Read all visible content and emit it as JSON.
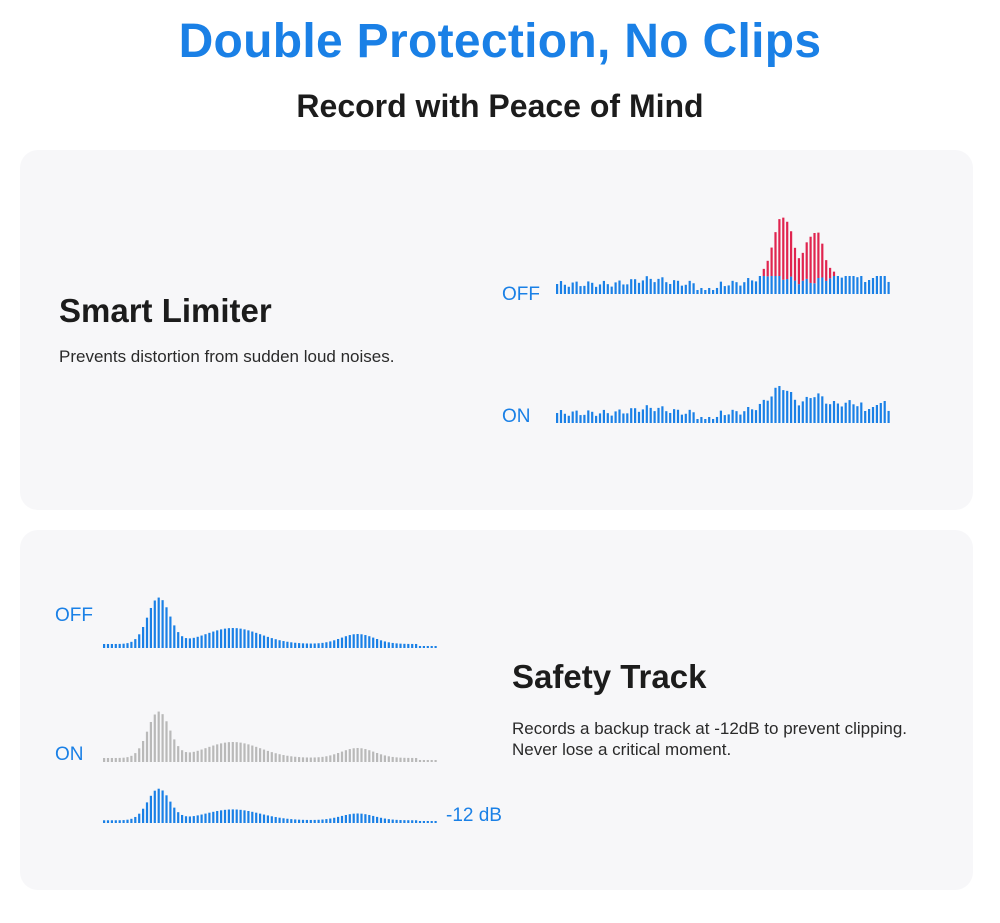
{
  "header": {
    "title": "Double Protection, No Clips",
    "subtitle": "Record with Peace of Mind"
  },
  "colors": {
    "accent": "#1a80e6",
    "clip": "#e0244f",
    "muted": "#b9b9b9",
    "card": "#f7f7f9"
  },
  "smart_limiter": {
    "title": "Smart Limiter",
    "description": "Prevents distortion from sudden loud noises.",
    "off_label": "OFF",
    "on_label": "ON"
  },
  "safety_track": {
    "title": "Safety Track",
    "description_line1": "Records a backup track at -12dB to prevent clipping.",
    "description_line2": "Never lose a critical moment.",
    "off_label": "OFF",
    "on_label": "ON",
    "backup_label": "-12 dB"
  }
}
